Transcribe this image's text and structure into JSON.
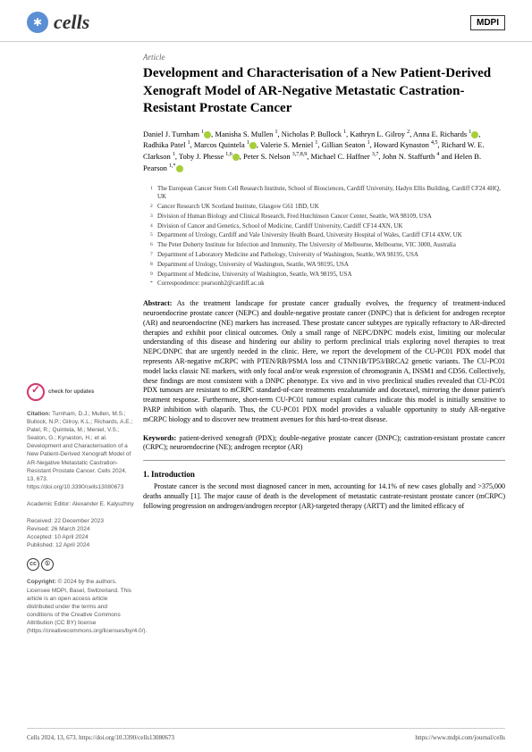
{
  "header": {
    "journal_name": "cells",
    "publisher": "MDPI"
  },
  "article": {
    "type": "Article",
    "title": "Development and Characterisation of a New Patient-Derived Xenograft Model of AR-Negative Metastatic Castration-Resistant Prostate Cancer",
    "authors_html": "Daniel J. Turnham <span class='sup'>1</span><span class='orcid'></span>, Manisha S. Mullen <span class='sup'>1</span>, Nicholas P. Bullock <span class='sup'>1</span>, Kathryn L. Gilroy <span class='sup'>2</span>, Anna E. Richards <span class='sup'>1</span><span class='orcid'></span>, Radhika Patel <span class='sup'>1</span>, Marcos Quintela <span class='sup'>1</span><span class='orcid'></span>, Valerie S. Meniel <span class='sup'>1</span>, Gillian Seaton <span class='sup'>1</span>, Howard Kynaston <span class='sup'>4,5</span>, Richard W. E. Clarkson <span class='sup'>1</span>, Toby J. Phesse <span class='sup'>1,6</span><span class='orcid'></span>, Peter S. Nelson <span class='sup'>3,7,8,9</span>, Michael C. Haffner <span class='sup'>3,7</span>, John N. Staffurth <span class='sup'>4</span> and Helen B. Pearson <span class='sup'>1,*</span><span class='orcid'></span>"
  },
  "affiliations": [
    {
      "num": "1",
      "text": "The European Cancer Stem Cell Research Institute, School of Biosciences, Cardiff University, Hadyn Ellis Building, Cardiff CF24 4HQ, UK"
    },
    {
      "num": "2",
      "text": "Cancer Research UK Scotland Institute, Glasgow G61 1BD, UK"
    },
    {
      "num": "3",
      "text": "Division of Human Biology and Clinical Research, Fred Hutchinson Cancer Center, Seattle, WA 98109, USA"
    },
    {
      "num": "4",
      "text": "Division of Cancer and Genetics, School of Medicine, Cardiff University, Cardiff CF14 4XN, UK"
    },
    {
      "num": "5",
      "text": "Department of Urology, Cardiff and Vale University Health Board, University Hospital of Wales, Cardiff CF14 4XW, UK"
    },
    {
      "num": "6",
      "text": "The Peter Doherty Institute for Infection and Immunity, The University of Melbourne, Melbourne, VIC 3000, Australia"
    },
    {
      "num": "7",
      "text": "Department of Laboratory Medicine and Pathology, University of Washington, Seattle, WA 98195, USA"
    },
    {
      "num": "8",
      "text": "Department of Urology, University of Washington, Seattle, WA 98195, USA"
    },
    {
      "num": "9",
      "text": "Department of Medicine, University of Washington, Seattle, WA 98195, USA"
    },
    {
      "num": "*",
      "text": "Correspondence: pearsonh2@cardiff.ac.uk"
    }
  ],
  "abstract": {
    "label": "Abstract:",
    "text": "As the treatment landscape for prostate cancer gradually evolves, the frequency of treatment-induced neuroendocrine prostate cancer (NEPC) and double-negative prostate cancer (DNPC) that is deficient for androgen receptor (AR) and neuroendocrine (NE) markers has increased. These prostate cancer subtypes are typically refractory to AR-directed therapies and exhibit poor clinical outcomes. Only a small range of NEPC/DNPC models exist, limiting our molecular understanding of this disease and hindering our ability to perform preclinical trials exploring novel therapies to treat NEPC/DNPC that are urgently needed in the clinic. Here, we report the development of the CU-PC01 PDX model that represents AR-negative mCRPC with PTEN/RB/PSMA loss and CTNN1B/TP53/BRCA2 genetic variants. The CU-PC01 model lacks classic NE markers, with only focal and/or weak expression of chromogranin A, INSM1 and CD56. Collectively, these findings are most consistent with a DNPC phenotype. Ex vivo and in vivo preclinical studies revealed that CU-PC01 PDX tumours are resistant to mCRPC standard-of-care treatments enzalutamide and docetaxel, mirroring the donor patient's treatment response. Furthermore, short-term CU-PC01 tumour explant cultures indicate this model is initially sensitive to PARP inhibition with olaparib. Thus, the CU-PC01 PDX model provides a valuable opportunity to study AR-negative mCRPC biology and to discover new treatment avenues for this hard-to-treat disease."
  },
  "keywords": {
    "label": "Keywords:",
    "text": "patient-derived xenograft (PDX); double-negative prostate cancer (DNPC); castration-resistant prostate cancer (CRPC); neuroendocrine (NE); androgen receptor (AR)"
  },
  "intro": {
    "heading": "1. Introduction",
    "text": "Prostate cancer is the second most diagnosed cancer in men, accounting for 14.1% of new cases globally and >375,000 deaths annually [1]. The major cause of death is the development of metastatic castrate-resistant prostate cancer (mCRPC) following progression on androgen/androgen receptor (AR)-targeted therapy (ARTT) and the limited efficacy of"
  },
  "sidebar": {
    "check_updates": "check for updates",
    "citation_label": "Citation:",
    "citation_text": "Turnham, D.J.; Mullen, M.S.; Bullock, N.P.; Gilroy, K.L.; Richards, A.E.; Patel, R.; Quintela, M.; Meniel, V.S.; Seaton, G.; Kynaston, H.; et al. Development and Characterisation of a New Patient-Derived Xenograft Model of AR-Negative Metastatic Castration-Resistant Prostate Cancer. Cells 2024, 13, 673. https://doi.org/10.3390/cells13080673",
    "editor_label": "Academic Editor:",
    "editor": "Alexander E. Kalyuzhny",
    "received": "Received: 22 December 2023",
    "revised": "Revised: 26 March 2024",
    "accepted": "Accepted: 10 April 2024",
    "published": "Published: 12 April 2024",
    "copyright_label": "Copyright:",
    "copyright_text": "© 2024 by the authors. Licensee MDPI, Basel, Switzerland. This article is an open access article distributed under the terms and conditions of the Creative Commons Attribution (CC BY) license (https://creativecommons.org/licenses/by/4.0/)."
  },
  "footer": {
    "left": "Cells 2024, 13, 673. https://doi.org/10.3390/cells13080673",
    "right": "https://www.mdpi.com/journal/cells"
  }
}
